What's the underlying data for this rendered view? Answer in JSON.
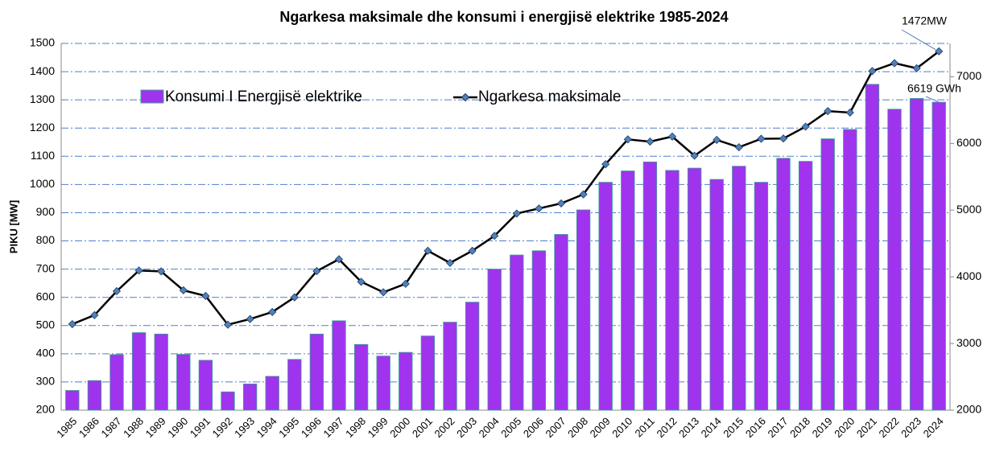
{
  "chart_data": {
    "type": "bar-line",
    "title": "Ngarkesa maksimale dhe konsumi i energjisë elektrike 1985-2024",
    "ylabel": "PIKU [MW]",
    "categories": [
      "1985",
      "1986",
      "1987",
      "1988",
      "1989",
      "1990",
      "1991",
      "1992",
      "1993",
      "1994",
      "1995",
      "1996",
      "1997",
      "1998",
      "1999",
      "2000",
      "2001",
      "2002",
      "2003",
      "2004",
      "2005",
      "2006",
      "2007",
      "2008",
      "2009",
      "2010",
      "2011",
      "2012",
      "2013",
      "2014",
      "2015",
      "2016",
      "2017",
      "2018",
      "2019",
      "2020",
      "2021",
      "2022",
      "2023",
      "2024"
    ],
    "series": [
      {
        "name": "Konsumi I Energjisë elektrike",
        "type": "bar",
        "axis": "y2",
        "color": "#a033ee",
        "values": [
          2296,
          2444,
          2833,
          3163,
          3142,
          2838,
          2749,
          2275,
          2393,
          2508,
          2762,
          3142,
          3341,
          2986,
          2812,
          2867,
          3113,
          3320,
          3620,
          4115,
          4327,
          4391,
          4636,
          5004,
          5418,
          5588,
          5723,
          5596,
          5630,
          5461,
          5659,
          5418,
          5778,
          5732,
          6070,
          6210,
          6887,
          6514,
          6675,
          6619
        ]
      },
      {
        "name": "Ngarkesa maksimale",
        "type": "line",
        "color": "#000000",
        "marker_color": "#4f81bd",
        "values": [
          505,
          537,
          622,
          695,
          692,
          625,
          605,
          503,
          523,
          548,
          600,
          693,
          735,
          655,
          618,
          648,
          765,
          722,
          765,
          818,
          897,
          915,
          933,
          965,
          1072,
          1160,
          1152,
          1170,
          1102,
          1158,
          1132,
          1162,
          1163,
          1205,
          1260,
          1255,
          1402,
          1430,
          1412,
          1472
        ]
      }
    ],
    "annotations": [
      "1472MW",
      "6619 GWh"
    ],
    "ylim": [
      200,
      1500
    ],
    "yticks": [
      200,
      300,
      400,
      500,
      600,
      700,
      800,
      900,
      1000,
      1100,
      1200,
      1300,
      1400,
      1500
    ],
    "y2lim": [
      2000,
      7500
    ],
    "y2ticks": [
      2000,
      3000,
      4000,
      5000,
      6000,
      7000
    ],
    "grid": true,
    "legend": "top-left"
  }
}
